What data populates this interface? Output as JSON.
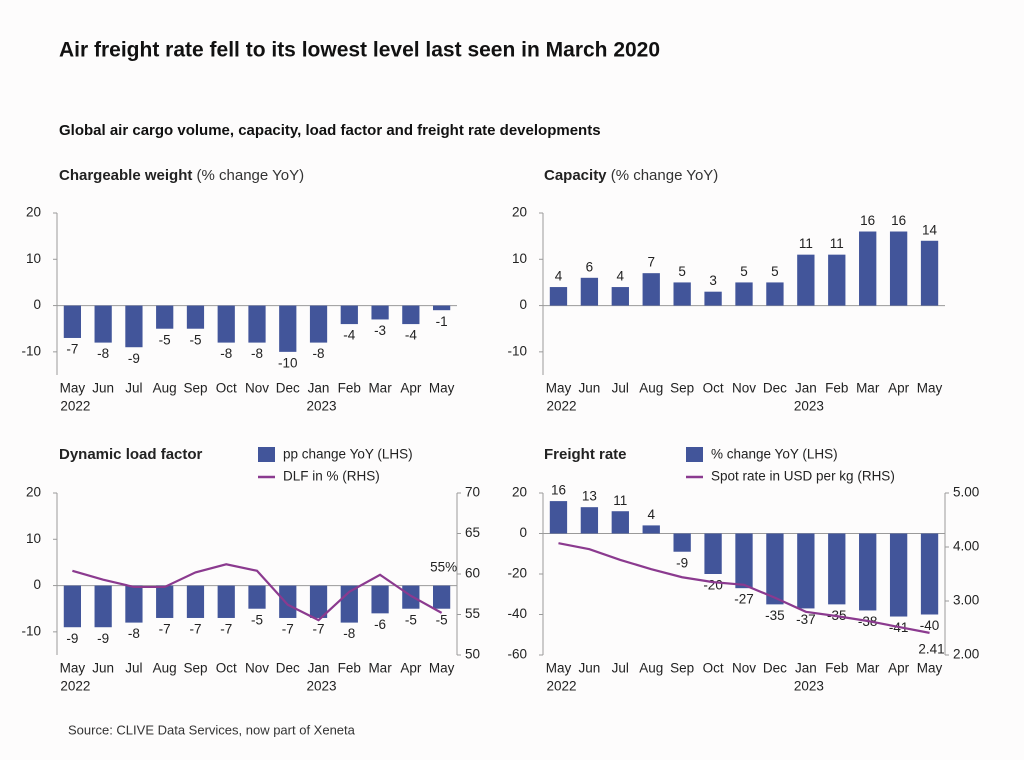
{
  "title": "Air freight rate fell to its lowest level last seen in March 2020",
  "subtitle": "Global air cargo volume, capacity, load factor and freight rate developments",
  "source": "Source: CLIVE Data Services, now part of Xeneta",
  "chart_data": [
    {
      "type": "bar",
      "title": "Chargeable weight",
      "subtitle": "(% change YoY)",
      "categories": [
        "May",
        "Jun",
        "Jul",
        "Aug",
        "Sep",
        "Oct",
        "Nov",
        "Dec",
        "Jan",
        "Feb",
        "Mar",
        "Apr",
        "May"
      ],
      "category_years": [
        "2022",
        null,
        null,
        null,
        null,
        null,
        null,
        null,
        "2023",
        null,
        null,
        null,
        null
      ],
      "values": [
        -7,
        -8,
        -9,
        -5,
        -5,
        -8,
        -8,
        -10,
        -8,
        -4,
        -3,
        -4,
        -1
      ],
      "color": "#42559a",
      "ylim": [
        -15,
        20
      ],
      "yticks": [
        20,
        10,
        0,
        -10
      ]
    },
    {
      "type": "bar",
      "title": "Capacity",
      "subtitle": "(% change YoY)",
      "categories": [
        "May",
        "Jun",
        "Jul",
        "Aug",
        "Sep",
        "Oct",
        "Nov",
        "Dec",
        "Jan",
        "Feb",
        "Mar",
        "Apr",
        "May"
      ],
      "category_years": [
        "2022",
        null,
        null,
        null,
        null,
        null,
        null,
        null,
        "2023",
        null,
        null,
        null,
        null
      ],
      "values": [
        4,
        6,
        4,
        7,
        5,
        3,
        5,
        5,
        11,
        11,
        16,
        16,
        14
      ],
      "color": "#42559a",
      "ylim": [
        -15,
        20
      ],
      "yticks": [
        20,
        10,
        0,
        -10
      ]
    },
    {
      "type": "combo",
      "title": "Dynamic load factor",
      "categories": [
        "May",
        "Jun",
        "Jul",
        "Aug",
        "Sep",
        "Oct",
        "Nov",
        "Dec",
        "Jan",
        "Feb",
        "Mar",
        "Apr",
        "May"
      ],
      "category_years": [
        "2022",
        null,
        null,
        null,
        null,
        null,
        null,
        null,
        "2023",
        null,
        null,
        null,
        null
      ],
      "series": [
        {
          "name": "pp change YoY (LHS)",
          "type": "bar",
          "color": "#42559a",
          "values": [
            -9,
            -9,
            -8,
            -7,
            -7,
            -7,
            -5,
            -7,
            -7,
            -8,
            -6,
            -5,
            -5
          ]
        },
        {
          "name": "DLF in % (RHS)",
          "type": "line",
          "axis": "y2",
          "color": "#8b3a8f",
          "values": [
            60.4,
            59.3,
            58.4,
            58.4,
            60.2,
            61.2,
            60.4,
            56.2,
            54.3,
            57.8,
            59.9,
            57.3,
            55.2
          ],
          "value_labels": [
            null,
            null,
            null,
            null,
            null,
            null,
            null,
            null,
            null,
            null,
            null,
            null,
            "55%"
          ]
        }
      ],
      "ylim": [
        -15,
        20
      ],
      "yticks": [
        20,
        10,
        0,
        -10
      ],
      "y2lim": [
        50,
        70
      ],
      "y2ticks": [
        70,
        65,
        60,
        55,
        50
      ]
    },
    {
      "type": "combo",
      "title": "Freight rate",
      "categories": [
        "May",
        "Jun",
        "Jul",
        "Aug",
        "Sep",
        "Oct",
        "Nov",
        "Dec",
        "Jan",
        "Feb",
        "Mar",
        "Apr",
        "May"
      ],
      "category_years": [
        "2022",
        null,
        null,
        null,
        null,
        null,
        null,
        null,
        "2023",
        null,
        null,
        null,
        null
      ],
      "series": [
        {
          "name": "% change YoY (LHS)",
          "type": "bar",
          "color": "#42559a",
          "values": [
            16,
            13,
            11,
            4,
            -9,
            -20,
            -27,
            -35,
            -37,
            -35,
            -38,
            -41,
            -40
          ]
        },
        {
          "name": "Spot rate in USD per kg (RHS)",
          "type": "line",
          "axis": "y2",
          "color": "#8b3a8f",
          "values": [
            4.07,
            3.96,
            3.76,
            3.59,
            3.44,
            3.35,
            3.3,
            3.06,
            2.8,
            2.72,
            2.63,
            2.52,
            2.41
          ],
          "value_labels": [
            null,
            null,
            null,
            null,
            null,
            null,
            null,
            null,
            null,
            null,
            null,
            null,
            "2.41"
          ]
        }
      ],
      "ylim": [
        -60,
        20
      ],
      "yticks": [
        20,
        0,
        -20,
        -40,
        -60
      ],
      "y2lim": [
        2,
        5
      ],
      "y2ticks": [
        {
          "value": 5,
          "label": "5.00"
        },
        {
          "value": 4,
          "label": "4.00"
        },
        {
          "value": 3,
          "label": "3.00"
        },
        {
          "value": 2,
          "label": "2.00"
        }
      ]
    }
  ]
}
